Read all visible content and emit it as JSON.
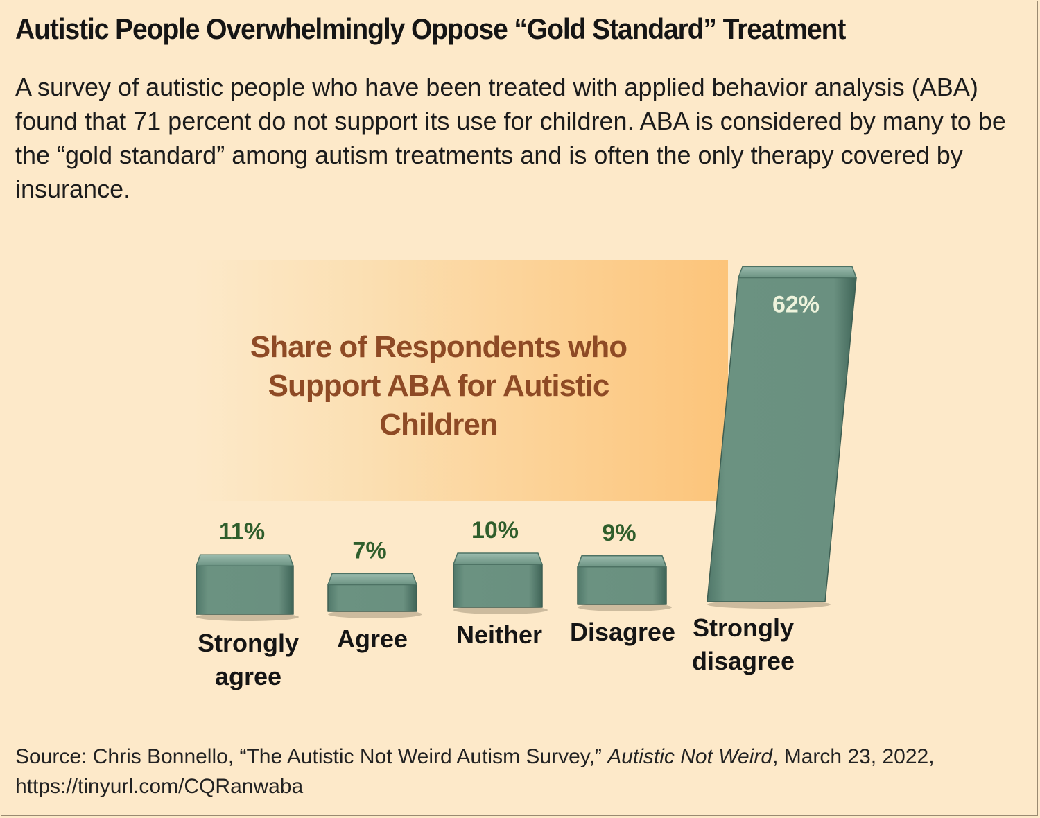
{
  "title": "Autistic People Overwhelmingly Oppose “Gold Standard” Treatment",
  "intro": "A survey of autistic people who have been treated with applied behavior analysis (ABA) found that 71 percent do not support its use for children. ABA is considered by many to be the “gold standard” among autism treatments and is often the only therapy covered by insurance.",
  "source": {
    "prefix": "Source: Chris Bonnello, “The Autistic Not Weird Autism Survey,” ",
    "publication": "Autistic Not Weird",
    "suffix": ", March 23, 2022, https://tinyurl.com/CQRanwaba"
  },
  "colors": {
    "background": "#fde9c9",
    "bar": "#6b9281",
    "value_label": "#2f5e2c",
    "top_value_label": "#eef3dc",
    "chart_title": "#8e4a25"
  },
  "chart_data": {
    "type": "bar",
    "title": "Share of Respondents who Support ABA for Autistic Children",
    "categories": [
      "Strongly agree",
      "Agree",
      "Neither",
      "Disagree",
      "Strongly disagree"
    ],
    "values": [
      11,
      7,
      10,
      9,
      62
    ],
    "labels": [
      "11%",
      "7%",
      "10%",
      "9%",
      "62%"
    ],
    "unit": "%",
    "ylim": [
      0,
      62
    ],
    "grid": false,
    "legend": "none"
  }
}
